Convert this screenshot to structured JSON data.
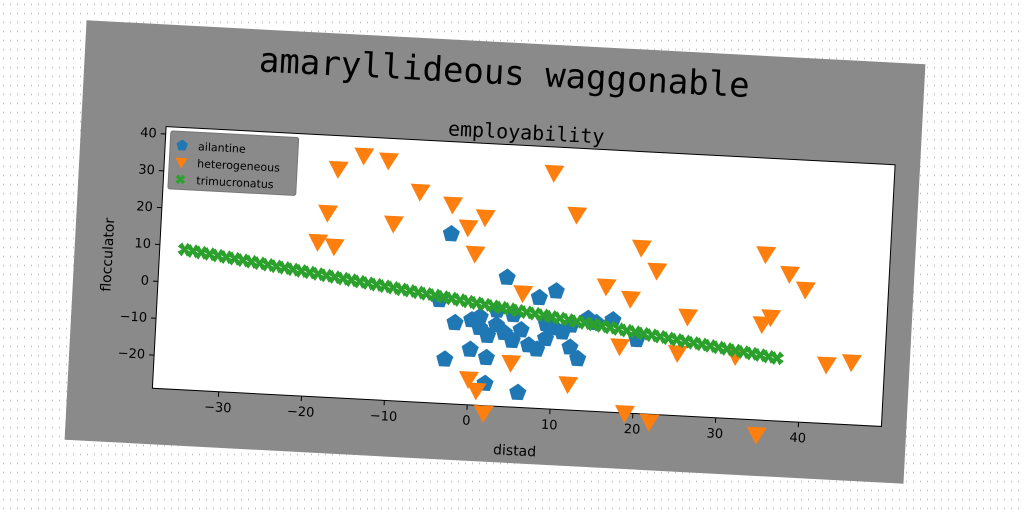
{
  "chart_data": {
    "type": "scatter",
    "suptitle": "amaryllideous waggonable",
    "title": "employability",
    "xlabel": "distad",
    "ylabel": "flocculator",
    "xlim": [
      -38,
      50
    ],
    "ylim": [
      -29,
      42
    ],
    "xticks": [
      -30,
      -20,
      -10,
      0,
      10,
      20,
      30,
      40
    ],
    "yticks": [
      -20,
      -10,
      0,
      10,
      20,
      30,
      40
    ],
    "grid": false,
    "legend_position": "top-left",
    "series": [
      {
        "name": "ailantine",
        "marker": "pentagon",
        "color": "#1f77b4",
        "points": [
          [
            -3,
            17
          ],
          [
            4,
            6
          ],
          [
            10,
            3
          ],
          [
            8,
            1
          ],
          [
            -4,
            -1
          ],
          [
            -2,
            -7
          ],
          [
            0,
            -6
          ],
          [
            1,
            -8
          ],
          [
            2,
            -10
          ],
          [
            3,
            -7
          ],
          [
            4,
            -9
          ],
          [
            5,
            -11
          ],
          [
            6,
            -8
          ],
          [
            7,
            -12
          ],
          [
            8,
            -13
          ],
          [
            9,
            -10
          ],
          [
            10,
            -7
          ],
          [
            11,
            -8
          ],
          [
            12,
            -12
          ],
          [
            13,
            -15
          ],
          [
            0,
            -14
          ],
          [
            2,
            -16
          ],
          [
            -3,
            -17
          ],
          [
            2,
            -23
          ],
          [
            6,
            -25
          ],
          [
            14,
            -4
          ],
          [
            15,
            -5
          ],
          [
            17,
            -4
          ],
          [
            20,
            -9
          ],
          [
            1,
            -5
          ],
          [
            3,
            -3
          ],
          [
            5,
            -4
          ],
          [
            9,
            -6
          ],
          [
            12,
            -6
          ]
        ]
      },
      {
        "name": "heterogeneous",
        "marker": "triangle_down",
        "color": "#ff7f0e",
        "points": [
          [
            -17,
            33
          ],
          [
            -14,
            37
          ],
          [
            -11,
            36
          ],
          [
            -7,
            28
          ],
          [
            -3,
            25
          ],
          [
            1,
            22
          ],
          [
            -1,
            19
          ],
          [
            -10,
            19
          ],
          [
            -18,
            21
          ],
          [
            -19,
            13
          ],
          [
            -17,
            12
          ],
          [
            0,
            12
          ],
          [
            9,
            35
          ],
          [
            12,
            24
          ],
          [
            20,
            16
          ],
          [
            22,
            10
          ],
          [
            16,
            5
          ],
          [
            19,
            2
          ],
          [
            26,
            -2
          ],
          [
            35,
            -3
          ],
          [
            36,
            -1
          ],
          [
            38,
            11
          ],
          [
            40,
            7
          ],
          [
            35,
            16
          ],
          [
            12,
            -22
          ],
          [
            5,
            -17
          ],
          [
            0,
            -22
          ],
          [
            1,
            -25
          ],
          [
            2,
            -31
          ],
          [
            19,
            -29
          ],
          [
            22,
            -31
          ],
          [
            35,
            -33
          ],
          [
            43,
            -13
          ],
          [
            46,
            -12
          ],
          [
            32,
            -12
          ],
          [
            25,
            -12
          ],
          [
            18,
            -11
          ],
          [
            6,
            2
          ]
        ]
      },
      {
        "name": "trimucronatus",
        "marker": "x_filled",
        "color": "#2ca02c",
        "line": {
          "x0": -35,
          "y0": 9,
          "x1": 37,
          "y1": -12
        },
        "count": 72
      }
    ]
  }
}
